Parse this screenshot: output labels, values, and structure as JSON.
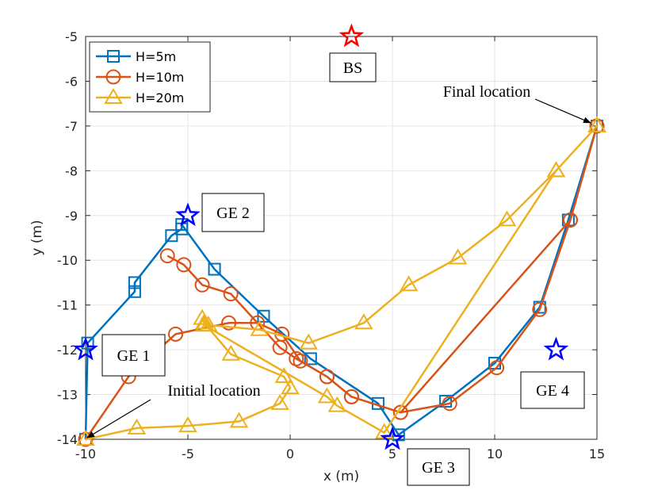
{
  "chart_data": {
    "type": "line",
    "title": "",
    "xlabel": "x (m)",
    "ylabel": "y (m)",
    "xlim": [
      -10,
      15
    ],
    "ylim": [
      -14,
      -5
    ],
    "xticks": [
      -10,
      -5,
      0,
      5,
      10,
      15
    ],
    "yticks": [
      -14,
      -13,
      -12,
      -11,
      -10,
      -9,
      -8,
      -7,
      -6,
      -5
    ],
    "grid": true,
    "legend_position": "top-left",
    "series": [
      {
        "name": "H=5m",
        "color": "#0072BD",
        "marker": "square",
        "points": [
          [
            -10,
            -14
          ],
          [
            -9.9,
            -11.85
          ],
          [
            -7.6,
            -10.7
          ],
          [
            -7.6,
            -10.5
          ],
          [
            -5.8,
            -9.45
          ],
          [
            -5.3,
            -9.3
          ],
          [
            -5.3,
            -9.2
          ],
          [
            -3.7,
            -10.2
          ],
          [
            -1.3,
            -11.25
          ],
          [
            1.0,
            -12.2
          ],
          [
            4.3,
            -13.2
          ],
          [
            5.3,
            -13.9
          ],
          [
            7.6,
            -13.15
          ],
          [
            10.0,
            -12.3
          ],
          [
            12.2,
            -11.05
          ],
          [
            13.6,
            -9.1
          ],
          [
            15,
            -7
          ]
        ]
      },
      {
        "name": "H=10m",
        "color": "#D95319",
        "marker": "circle",
        "points": [
          [
            -10,
            -14
          ],
          [
            -7.9,
            -12.6
          ],
          [
            -5.6,
            -11.65
          ],
          [
            -3.0,
            -11.4
          ],
          [
            -1.6,
            -11.4
          ],
          [
            -0.4,
            -11.65
          ],
          [
            0.5,
            -12.25
          ],
          [
            1.8,
            -12.6
          ],
          [
            3.0,
            -13.05
          ],
          [
            5.4,
            -13.4
          ],
          [
            7.8,
            -13.2
          ],
          [
            10.1,
            -12.4
          ],
          [
            12.2,
            -11.1
          ],
          [
            13.7,
            -9.1
          ],
          [
            15,
            -7
          ],
          [
            15,
            -7
          ],
          [
            13.7,
            -9.1
          ],
          [
            5.4,
            -13.4
          ],
          [
            3.0,
            -13.05
          ],
          [
            1.8,
            -12.6
          ],
          [
            0.3,
            -12.2
          ],
          [
            -0.5,
            -11.95
          ],
          [
            -2.9,
            -10.75
          ],
          [
            -4.3,
            -10.55
          ],
          [
            -5.2,
            -10.1
          ],
          [
            -6.0,
            -9.9
          ]
        ]
      },
      {
        "name": "H=20m",
        "color": "#EDB120",
        "marker": "triangle",
        "points": [
          [
            -10,
            -14
          ],
          [
            -7.5,
            -13.75
          ],
          [
            -5.0,
            -13.7
          ],
          [
            -2.5,
            -13.6
          ],
          [
            -0.5,
            -13.2
          ],
          [
            0,
            -12.85
          ],
          [
            -0.3,
            -12.6
          ],
          [
            -2.9,
            -12.1
          ],
          [
            -4.2,
            -11.4
          ],
          [
            -4.3,
            -11.3
          ],
          [
            -4.0,
            -11.45
          ],
          [
            -1.5,
            -11.55
          ],
          [
            0.9,
            -11.85
          ],
          [
            3.6,
            -11.4
          ],
          [
            5.8,
            -10.55
          ],
          [
            8.2,
            -9.95
          ],
          [
            10.6,
            -9.1
          ],
          [
            13.0,
            -8.0
          ],
          [
            15,
            -7
          ],
          [
            15,
            -7
          ],
          [
            13.0,
            -8.0
          ],
          [
            4.6,
            -13.85
          ],
          [
            2.3,
            -13.25
          ],
          [
            1.8,
            -13.05
          ],
          [
            -4.2,
            -11.45
          ]
        ]
      }
    ],
    "markers": [
      {
        "label": "BS",
        "x": 3,
        "y": -5,
        "color": "#FF0000"
      },
      {
        "label": "GE 1",
        "x": -10,
        "y": -12,
        "color": "#0000FF"
      },
      {
        "label": "GE 2",
        "x": -5,
        "y": -9,
        "color": "#0000FF"
      },
      {
        "label": "GE 3",
        "x": 5,
        "y": -14,
        "color": "#0000FF"
      },
      {
        "label": "GE 4",
        "x": 13,
        "y": -12,
        "color": "#0000FF"
      }
    ],
    "annotations": [
      {
        "text": "Final location",
        "x": 15,
        "y": -7
      },
      {
        "text": "Initial location",
        "x": -10,
        "y": -14
      }
    ]
  }
}
